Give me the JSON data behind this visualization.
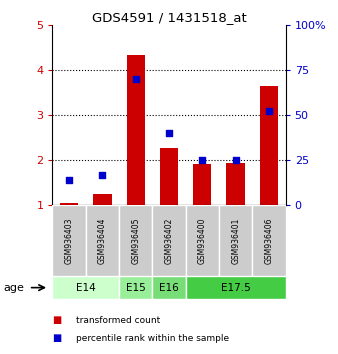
{
  "title": "GDS4591 / 1431518_at",
  "samples": [
    "GSM936403",
    "GSM936404",
    "GSM936405",
    "GSM936402",
    "GSM936400",
    "GSM936401",
    "GSM936406"
  ],
  "transformed_counts": [
    1.05,
    1.25,
    4.32,
    2.27,
    1.92,
    1.93,
    3.65
  ],
  "percentile_ranks": [
    14,
    17,
    70,
    40,
    25,
    25,
    52
  ],
  "age_groups": [
    {
      "label": "E14",
      "start": 0,
      "end": 2,
      "color": "#ccffcc"
    },
    {
      "label": "E15",
      "start": 2,
      "end": 3,
      "color": "#99ee99"
    },
    {
      "label": "E16",
      "start": 3,
      "end": 4,
      "color": "#77dd77"
    },
    {
      "label": "E17.5",
      "start": 4,
      "end": 7,
      "color": "#44cc44"
    }
  ],
  "ylim_left": [
    1,
    5
  ],
  "ylim_right": [
    0,
    100
  ],
  "bar_color": "#cc0000",
  "dot_color": "#0000cc",
  "left_tick_color": "#cc0000",
  "right_tick_color": "#0000cc",
  "sample_box_color": "#cccccc",
  "yticks_left": [
    1,
    2,
    3,
    4,
    5
  ],
  "yticks_right": [
    0,
    25,
    50,
    75,
    100
  ],
  "legend_items": [
    {
      "color": "#cc0000",
      "label": "transformed count"
    },
    {
      "color": "#0000cc",
      "label": "percentile rank within the sample"
    }
  ]
}
